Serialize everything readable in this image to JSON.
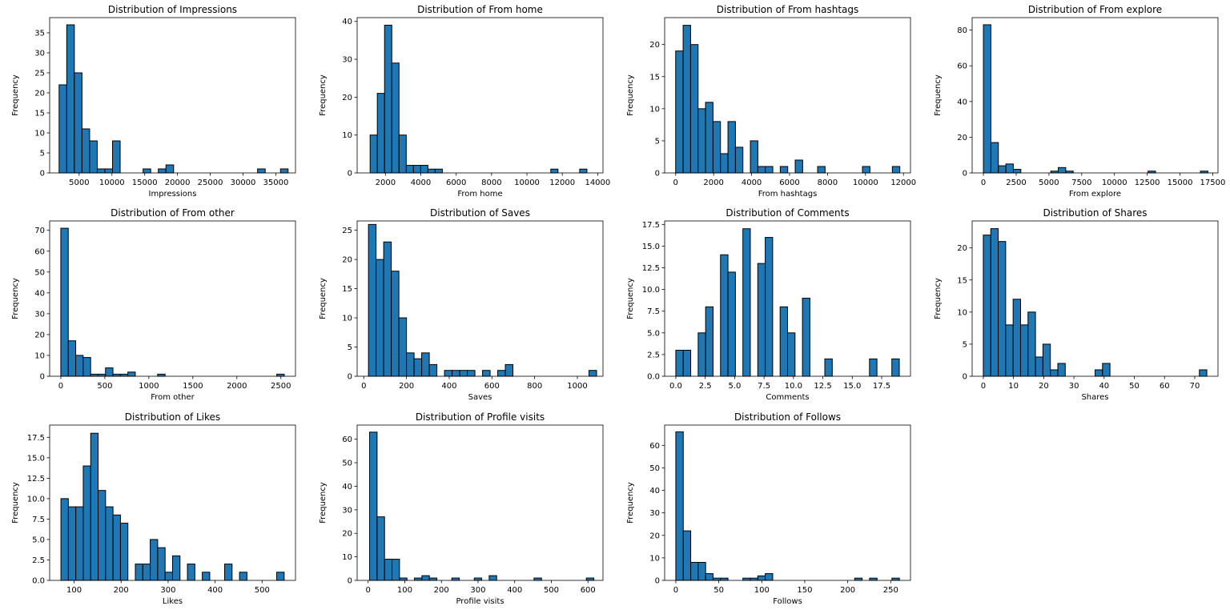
{
  "figure": {
    "bar_color": "#1f77b4",
    "edge_color": "#000000",
    "bins": 30
  },
  "chart_data": [
    {
      "type": "bar",
      "title": "Distribution of Impressions",
      "xlabel": "Impressions",
      "ylabel": "Frequency",
      "xlim": [
        500,
        38000
      ],
      "ylim": [
        0,
        38.8
      ],
      "xticks": [
        5000,
        10000,
        15000,
        20000,
        25000,
        30000,
        35000
      ],
      "xtick_labels": [
        "5000",
        "10000",
        "15000",
        "20000",
        "25000",
        "30000",
        "35000"
      ],
      "yticks": [
        0,
        5,
        10,
        15,
        20,
        25,
        30,
        35
      ],
      "ytick_labels": [
        "0",
        "5",
        "10",
        "15",
        "20",
        "25",
        "30",
        "35"
      ],
      "bin_start": 1941,
      "bin_width": 1164.5,
      "values": [
        22,
        37,
        25,
        11,
        8,
        1,
        1,
        8,
        0,
        0,
        0,
        1,
        0,
        1,
        2,
        0,
        0,
        0,
        0,
        0,
        0,
        0,
        0,
        0,
        0,
        0,
        1,
        0,
        0,
        1
      ]
    },
    {
      "type": "bar",
      "title": "Distribution of From home",
      "xlabel": "From home",
      "ylabel": "Frequency",
      "xlim": [
        400,
        14300
      ],
      "ylim": [
        0,
        41
      ],
      "xticks": [
        2000,
        4000,
        6000,
        8000,
        10000,
        12000,
        14000
      ],
      "xtick_labels": [
        "2000",
        "4000",
        "6000",
        "8000",
        "10000",
        "12000",
        "14000"
      ],
      "yticks": [
        0,
        10,
        20,
        30,
        40
      ],
      "ytick_labels": [
        "0",
        "10",
        "20",
        "30",
        "40"
      ],
      "bin_start": 1133,
      "bin_width": 408.6,
      "values": [
        10,
        21,
        39,
        29,
        10,
        2,
        2,
        2,
        1,
        1,
        0,
        0,
        0,
        0,
        0,
        0,
        0,
        0,
        0,
        0,
        0,
        0,
        0,
        0,
        0,
        1,
        0,
        0,
        0,
        1
      ]
    },
    {
      "type": "bar",
      "title": "Distribution of From hashtags",
      "xlabel": "From hashtags",
      "ylabel": "Frequency",
      "xlim": [
        -580,
        12370
      ],
      "ylim": [
        0,
        24.2
      ],
      "xticks": [
        0,
        2000,
        4000,
        6000,
        8000,
        10000,
        12000
      ],
      "xtick_labels": [
        "0",
        "2000",
        "4000",
        "6000",
        "8000",
        "10000",
        "12000"
      ],
      "yticks": [
        0,
        5,
        10,
        15,
        20
      ],
      "ytick_labels": [
        "0",
        "5",
        "10",
        "15",
        "20"
      ],
      "bin_start": 0,
      "bin_width": 393.6,
      "values": [
        19,
        23,
        20,
        10,
        11,
        8,
        3,
        8,
        4,
        0,
        5,
        1,
        1,
        0,
        1,
        0,
        2,
        0,
        0,
        1,
        0,
        0,
        0,
        0,
        0,
        1,
        0,
        0,
        0,
        1
      ]
    },
    {
      "type": "bar",
      "title": "Distribution of From explore",
      "xlabel": "From explore",
      "ylabel": "Frequency",
      "xlim": [
        -860,
        17900
      ],
      "ylim": [
        0,
        87
      ],
      "xticks": [
        0,
        2500,
        5000,
        7500,
        10000,
        12500,
        15000,
        17500
      ],
      "xtick_labels": [
        "0",
        "2500",
        "5000",
        "7500",
        "10000",
        "12500",
        "15000",
        "17500"
      ],
      "yticks": [
        0,
        20,
        40,
        60,
        80
      ],
      "ytick_labels": [
        "0",
        "20",
        "40",
        "60",
        "80"
      ],
      "bin_start": 0,
      "bin_width": 571,
      "values": [
        83,
        17,
        4,
        5,
        2,
        0,
        0,
        0,
        0,
        1,
        3,
        1,
        0,
        0,
        0,
        0,
        0,
        0,
        0,
        0,
        0,
        0,
        1,
        0,
        0,
        0,
        0,
        0,
        0,
        1
      ]
    },
    {
      "type": "bar",
      "title": "Distribution of From other",
      "xlabel": "From other",
      "ylabel": "Frequency",
      "xlim": [
        -127,
        2666
      ],
      "ylim": [
        0,
        74.5
      ],
      "xticks": [
        0,
        500,
        1000,
        1500,
        2000,
        2500
      ],
      "xtick_labels": [
        "0",
        "500",
        "1000",
        "1500",
        "2000",
        "2500"
      ],
      "yticks": [
        0,
        10,
        20,
        30,
        40,
        50,
        60,
        70
      ],
      "ytick_labels": [
        "0",
        "10",
        "20",
        "30",
        "40",
        "50",
        "60",
        "70"
      ],
      "bin_start": 0,
      "bin_width": 84.6,
      "values": [
        71,
        17,
        10,
        9,
        1,
        1,
        4,
        1,
        1,
        2,
        0,
        0,
        0,
        1,
        0,
        0,
        0,
        0,
        0,
        0,
        0,
        0,
        0,
        0,
        0,
        0,
        0,
        0,
        0,
        1
      ]
    },
    {
      "type": "bar",
      "title": "Distribution of Saves",
      "xlabel": "Saves",
      "ylabel": "Frequency",
      "xlim": [
        -31,
        1120
      ],
      "ylim": [
        0,
        26.6
      ],
      "xticks": [
        0,
        200,
        400,
        600,
        800,
        1000
      ],
      "xtick_labels": [
        "0",
        "200",
        "400",
        "600",
        "800",
        "1000"
      ],
      "yticks": [
        0,
        5,
        10,
        15,
        20,
        25
      ],
      "ytick_labels": [
        "0",
        "5",
        "10",
        "15",
        "20",
        "25"
      ],
      "bin_start": 22,
      "bin_width": 35.6,
      "values": [
        26,
        20,
        23,
        18,
        10,
        4,
        3,
        4,
        2,
        0,
        1,
        1,
        1,
        1,
        0,
        1,
        0,
        1,
        2,
        0,
        0,
        0,
        0,
        0,
        0,
        0,
        0,
        0,
        0,
        1
      ]
    },
    {
      "type": "bar",
      "title": "Distribution of Comments",
      "xlabel": "Comments",
      "ylabel": "Frequency",
      "xlim": [
        -0.95,
        19.95
      ],
      "ylim": [
        0,
        17.9
      ],
      "xticks": [
        0,
        2.5,
        5,
        7.5,
        10,
        12.5,
        15,
        17.5
      ],
      "xtick_labels": [
        "0.0",
        "2.5",
        "5.0",
        "7.5",
        "10.0",
        "12.5",
        "15.0",
        "17.5"
      ],
      "yticks": [
        0,
        2.5,
        5,
        7.5,
        10,
        12.5,
        15,
        17.5
      ],
      "ytick_labels": [
        "0.0",
        "2.5",
        "5.0",
        "7.5",
        "10.0",
        "12.5",
        "15.0",
        "17.5"
      ],
      "bin_start": 0,
      "bin_width": 0.6333,
      "values": [
        3,
        3,
        0,
        5,
        8,
        0,
        14,
        12,
        0,
        17,
        0,
        13,
        16,
        0,
        8,
        5,
        0,
        9,
        0,
        0,
        2,
        0,
        0,
        0,
        0,
        0,
        2,
        0,
        0,
        2
      ]
    },
    {
      "type": "bar",
      "title": "Distribution of Shares",
      "xlabel": "Shares",
      "ylabel": "Frequency",
      "xlim": [
        -3.7,
        77.7
      ],
      "ylim": [
        0,
        24.2
      ],
      "xticks": [
        0,
        10,
        20,
        30,
        40,
        50,
        60,
        70
      ],
      "xtick_labels": [
        "0",
        "10",
        "20",
        "30",
        "40",
        "50",
        "60",
        "70"
      ],
      "yticks": [
        0,
        5,
        10,
        15,
        20
      ],
      "ytick_labels": [
        "0",
        "5",
        "10",
        "15",
        "20"
      ],
      "bin_start": 0,
      "bin_width": 2.4667,
      "values": [
        22,
        23,
        21,
        8,
        12,
        8,
        10,
        3,
        5,
        1,
        2,
        0,
        0,
        0,
        0,
        1,
        2,
        0,
        0,
        0,
        0,
        0,
        0,
        0,
        0,
        0,
        0,
        0,
        0,
        1
      ]
    },
    {
      "type": "bar",
      "title": "Distribution of Likes",
      "xlabel": "Likes",
      "ylabel": "Frequency",
      "xlim": [
        48,
        571
      ],
      "ylim": [
        0,
        19
      ],
      "xticks": [
        100,
        200,
        300,
        400,
        500
      ],
      "xtick_labels": [
        "100",
        "200",
        "300",
        "400",
        "500"
      ],
      "yticks": [
        0,
        2.5,
        5,
        7.5,
        10,
        12.5,
        15,
        17.5
      ],
      "ytick_labels": [
        "0.0",
        "2.5",
        "5.0",
        "7.5",
        "10.0",
        "12.5",
        "15.0",
        "17.5"
      ],
      "bin_start": 72,
      "bin_width": 15.83,
      "values": [
        10,
        9,
        9,
        14,
        18,
        11,
        9,
        8,
        7,
        0,
        2,
        2,
        5,
        4,
        1,
        3,
        0,
        2,
        0,
        1,
        0,
        0,
        2,
        0,
        1,
        0,
        0,
        0,
        0,
        1
      ]
    },
    {
      "type": "bar",
      "title": "Distribution of Profile visits",
      "xlabel": "Profile visits",
      "ylabel": "Frequency",
      "xlim": [
        -30,
        641
      ],
      "ylim": [
        0,
        66
      ],
      "xticks": [
        0,
        100,
        200,
        300,
        400,
        500,
        600
      ],
      "xtick_labels": [
        "0",
        "100",
        "200",
        "300",
        "400",
        "500",
        "600"
      ],
      "yticks": [
        0,
        10,
        20,
        30,
        40,
        50,
        60
      ],
      "ytick_labels": [
        "0",
        "10",
        "20",
        "30",
        "40",
        "50",
        "60"
      ],
      "bin_start": 4,
      "bin_width": 20.4,
      "values": [
        63,
        27,
        9,
        9,
        1,
        0,
        1,
        2,
        1,
        0,
        0,
        1,
        0,
        0,
        1,
        0,
        2,
        0,
        0,
        0,
        0,
        0,
        1,
        0,
        0,
        0,
        0,
        0,
        0,
        1
      ]
    },
    {
      "type": "bar",
      "title": "Distribution of Follows",
      "xlabel": "Follows",
      "ylabel": "Frequency",
      "xlim": [
        -13,
        273
      ],
      "ylim": [
        0,
        69
      ],
      "xticks": [
        0,
        50,
        100,
        150,
        200,
        250
      ],
      "xtick_labels": [
        "0",
        "50",
        "100",
        "150",
        "200",
        "250"
      ],
      "yticks": [
        0,
        10,
        20,
        30,
        40,
        50,
        60
      ],
      "ytick_labels": [
        "0",
        "10",
        "20",
        "30",
        "40",
        "50",
        "60"
      ],
      "bin_start": 0,
      "bin_width": 8.67,
      "values": [
        66,
        22,
        8,
        8,
        3,
        1,
        1,
        0,
        0,
        1,
        1,
        2,
        3,
        0,
        0,
        0,
        0,
        0,
        0,
        0,
        0,
        0,
        0,
        0,
        1,
        0,
        1,
        0,
        0,
        1
      ]
    }
  ]
}
